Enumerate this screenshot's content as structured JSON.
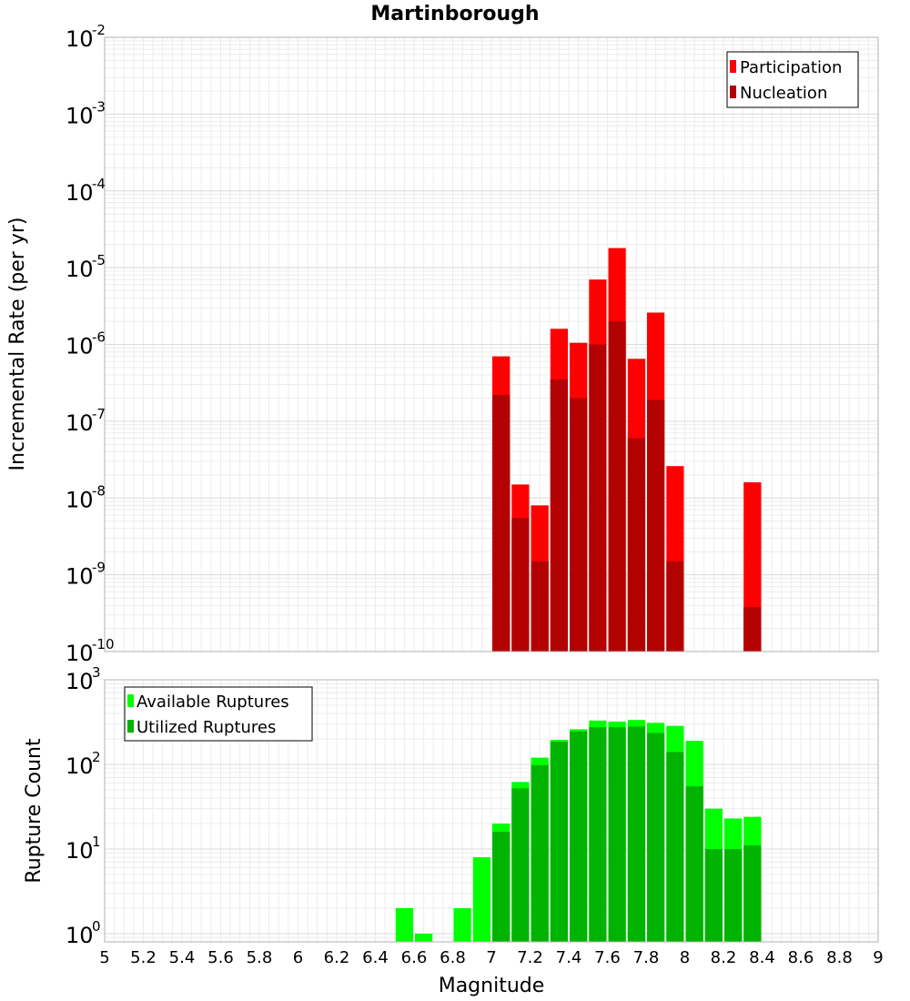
{
  "chart_data": [
    {
      "type": "bar",
      "title": "Martinborough",
      "xlabel": "",
      "ylabel": "Incremental Rate (per yr)",
      "yscale": "log",
      "ylim": [
        1e-10,
        0.01
      ],
      "xlim": [
        5,
        9
      ],
      "grid": true,
      "legend": "top-right",
      "x": [
        7.05,
        7.15,
        7.25,
        7.35,
        7.45,
        7.55,
        7.65,
        7.75,
        7.85,
        7.95,
        8.35
      ],
      "series": [
        {
          "name": "Participation",
          "color": "#ff0000",
          "values": [
            7e-07,
            1.5e-08,
            8e-09,
            1.6e-06,
            1.05e-06,
            7e-06,
            1.8e-05,
            6.5e-07,
            2.6e-06,
            2.6e-08,
            1.6e-08
          ]
        },
        {
          "name": "Nucleation",
          "color": "#b30000",
          "values": [
            2.2e-07,
            5.5e-09,
            1.5e-09,
            3.5e-07,
            2e-07,
            1e-06,
            2e-06,
            6e-08,
            1.9e-07,
            1.5e-09,
            3.8e-10
          ]
        }
      ]
    },
    {
      "type": "bar",
      "title": "",
      "xlabel": "Magnitude",
      "ylabel": "Rupture Count",
      "yscale": "log",
      "ylim": [
        0.8,
        1000
      ],
      "xlim": [
        5,
        9
      ],
      "xticks": [
        "5",
        "5.2",
        "5.4",
        "5.6",
        "5.8",
        "6",
        "6.2",
        "6.4",
        "6.6",
        "6.8",
        "7",
        "7.2",
        "7.4",
        "7.6",
        "7.8",
        "8",
        "8.2",
        "8.4",
        "8.6",
        "8.8",
        "9"
      ],
      "grid": true,
      "legend": "top-left",
      "x": [
        6.55,
        6.65,
        6.85,
        6.95,
        7.05,
        7.15,
        7.25,
        7.35,
        7.45,
        7.55,
        7.65,
        7.75,
        7.85,
        7.95,
        8.05,
        8.15,
        8.25,
        8.35
      ],
      "series": [
        {
          "name": "Available Ruptures",
          "color": "#00ff00",
          "values": [
            2,
            1,
            2,
            8,
            20,
            62,
            120,
            195,
            260,
            330,
            320,
            335,
            310,
            285,
            190,
            30,
            23,
            24
          ]
        },
        {
          "name": "Utilized Ruptures",
          "color": "#00b300",
          "values": [
            0,
            0,
            0,
            0,
            16,
            52,
            98,
            185,
            245,
            275,
            275,
            280,
            235,
            140,
            55,
            10,
            10,
            11
          ]
        }
      ]
    }
  ]
}
